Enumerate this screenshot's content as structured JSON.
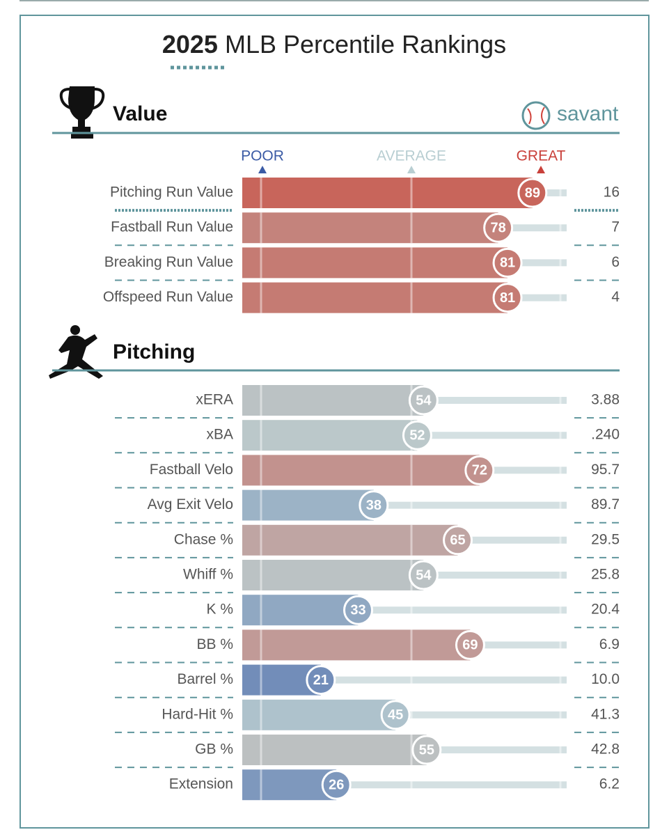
{
  "header": {
    "year": "2025",
    "title": "MLB Percentile Rankings"
  },
  "brand": "savant",
  "scale": {
    "poor": "POOR",
    "average": "AVERAGE",
    "great": "GREAT"
  },
  "sections": [
    {
      "title": "Value",
      "rows": [
        {
          "label": "Pitching Run Value",
          "percentile": 89,
          "value": "16"
        },
        {
          "label": "Fastball Run Value",
          "percentile": 78,
          "value": "7"
        },
        {
          "label": "Breaking Run Value",
          "percentile": 81,
          "value": "6"
        },
        {
          "label": "Offspeed Run Value",
          "percentile": 81,
          "value": "4"
        }
      ]
    },
    {
      "title": "Pitching",
      "rows": [
        {
          "label": "xERA",
          "percentile": 54,
          "value": "3.88"
        },
        {
          "label": "xBA",
          "percentile": 52,
          "value": ".240"
        },
        {
          "label": "Fastball Velo",
          "percentile": 72,
          "value": "95.7"
        },
        {
          "label": "Avg Exit Velo",
          "percentile": 38,
          "value": "89.7"
        },
        {
          "label": "Chase %",
          "percentile": 65,
          "value": "29.5"
        },
        {
          "label": "Whiff %",
          "percentile": 54,
          "value": "25.8"
        },
        {
          "label": "K %",
          "percentile": 33,
          "value": "20.4"
        },
        {
          "label": "BB %",
          "percentile": 69,
          "value": "6.9"
        },
        {
          "label": "Barrel %",
          "percentile": 21,
          "value": "10.0"
        },
        {
          "label": "Hard-Hit %",
          "percentile": 45,
          "value": "41.3"
        },
        {
          "label": "GB %",
          "percentile": 55,
          "value": "42.8"
        },
        {
          "label": "Extension",
          "percentile": 26,
          "value": "6.2"
        }
      ]
    }
  ]
}
